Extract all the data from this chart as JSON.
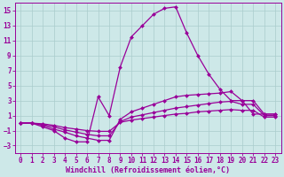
{
  "background_color": "#cde8e8",
  "grid_color": "#aacccc",
  "line_color": "#990099",
  "xlim": [
    -0.5,
    23.5
  ],
  "ylim": [
    -4,
    16
  ],
  "xticks": [
    0,
    1,
    2,
    3,
    4,
    5,
    6,
    7,
    8,
    9,
    10,
    11,
    12,
    13,
    14,
    15,
    16,
    17,
    18,
    19,
    20,
    21,
    22,
    23
  ],
  "yticks": [
    -3,
    -1,
    1,
    3,
    5,
    7,
    9,
    11,
    13,
    15
  ],
  "xlabel": "Windchill (Refroidissement éolien,°C)",
  "lines": [
    {
      "x": [
        0,
        1,
        2,
        3,
        4,
        5,
        6,
        7,
        8,
        9,
        10,
        11,
        12,
        13,
        14,
        15,
        16,
        17,
        18,
        19,
        20,
        21,
        22,
        23
      ],
      "y": [
        0,
        0,
        -0.5,
        -1.0,
        -2.0,
        -2.5,
        -2.5,
        3.5,
        1.0,
        7.5,
        11.5,
        13.0,
        14.5,
        15.3,
        15.5,
        12.0,
        9.0,
        6.5,
        4.5,
        3.0,
        3.0,
        1.2,
        1.2,
        1.2
      ]
    },
    {
      "x": [
        0,
        1,
        2,
        3,
        4,
        5,
        6,
        7,
        8,
        9,
        10,
        11,
        12,
        13,
        14,
        15,
        16,
        17,
        18,
        19,
        20,
        21,
        22,
        23
      ],
      "y": [
        0,
        0,
        -0.3,
        -0.8,
        -1.2,
        -1.7,
        -2.0,
        -2.3,
        -2.3,
        0.5,
        1.5,
        2.0,
        2.5,
        3.0,
        3.5,
        3.7,
        3.8,
        3.9,
        4.0,
        4.2,
        3.0,
        3.0,
        1.2,
        1.2
      ]
    },
    {
      "x": [
        0,
        1,
        2,
        3,
        4,
        5,
        6,
        7,
        8,
        9,
        10,
        11,
        12,
        13,
        14,
        15,
        16,
        17,
        18,
        19,
        20,
        21,
        22,
        23
      ],
      "y": [
        0,
        0,
        -0.2,
        -0.5,
        -0.9,
        -1.2,
        -1.5,
        -1.7,
        -1.7,
        0.2,
        0.8,
        1.1,
        1.4,
        1.7,
        2.0,
        2.2,
        2.4,
        2.6,
        2.8,
        2.9,
        2.5,
        2.5,
        1.0,
        1.0
      ]
    },
    {
      "x": [
        0,
        1,
        2,
        3,
        4,
        5,
        6,
        7,
        8,
        9,
        10,
        11,
        12,
        13,
        14,
        15,
        16,
        17,
        18,
        19,
        20,
        21,
        22,
        23
      ],
      "y": [
        0,
        0,
        -0.1,
        -0.3,
        -0.6,
        -0.8,
        -1.0,
        -1.1,
        -1.1,
        0.1,
        0.4,
        0.6,
        0.8,
        1.0,
        1.2,
        1.3,
        1.5,
        1.6,
        1.7,
        1.8,
        1.7,
        1.7,
        0.8,
        0.8
      ]
    }
  ],
  "tick_fontsize": 5.5,
  "xlabel_fontsize": 6.0,
  "marker": "D",
  "marker_size": 2.0,
  "line_width": 0.9
}
